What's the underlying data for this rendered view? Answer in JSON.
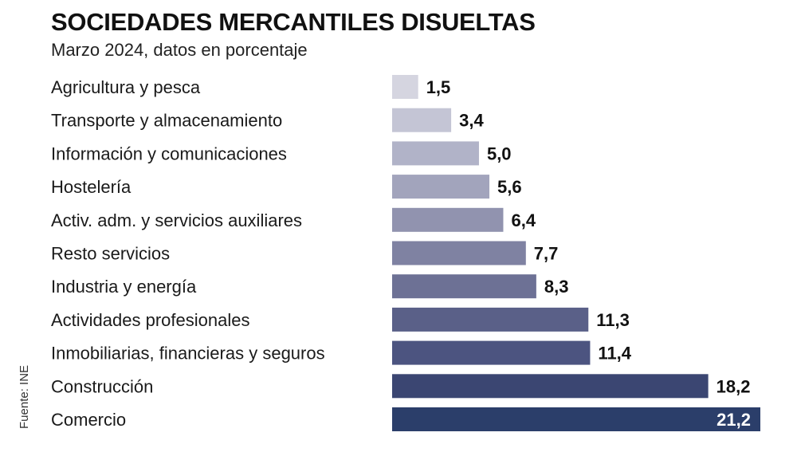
{
  "header": {
    "title": "SOCIEDADES MERCANTILES DISUELTAS",
    "subtitle": "Marzo 2024, datos en porcentaje"
  },
  "source": "Fuente: INE",
  "chart_data": {
    "type": "bar",
    "orientation": "horizontal",
    "title": "SOCIEDADES MERCANTILES DISUELTAS",
    "subtitle": "Marzo 2024, datos en porcentaje",
    "xlabel": "",
    "ylabel": "",
    "xlim": [
      0,
      21.2
    ],
    "grid": false,
    "categories": [
      "Agricultura y pesca",
      "Transporte y almacenamiento",
      "Información y comunicaciones",
      "Hostelería",
      "Activ. adm. y servicios auxiliares",
      "Resto servicios",
      "Industria y energía",
      "Actividades profesionales",
      "Inmobiliarias, financieras y seguros",
      "Construcción",
      "Comercio"
    ],
    "values": [
      1.5,
      3.4,
      5.0,
      5.6,
      6.4,
      7.7,
      8.3,
      11.3,
      11.4,
      18.2,
      21.2
    ],
    "value_labels": [
      "1,5",
      "3,4",
      "5,0",
      "5,6",
      "6,4",
      "7,7",
      "8,3",
      "11,3",
      "11,4",
      "18,2",
      "21,2"
    ],
    "colors": [
      "#d5d5e0",
      "#c4c5d5",
      "#b1b3c8",
      "#a2a4bc",
      "#9193af",
      "#7f82a2",
      "#6d7195",
      "#5a6088",
      "#4c5480",
      "#3b4672",
      "#2b3e6a"
    ],
    "value_label_color": "#111111",
    "value_label_inside_color": "#ffffff"
  }
}
